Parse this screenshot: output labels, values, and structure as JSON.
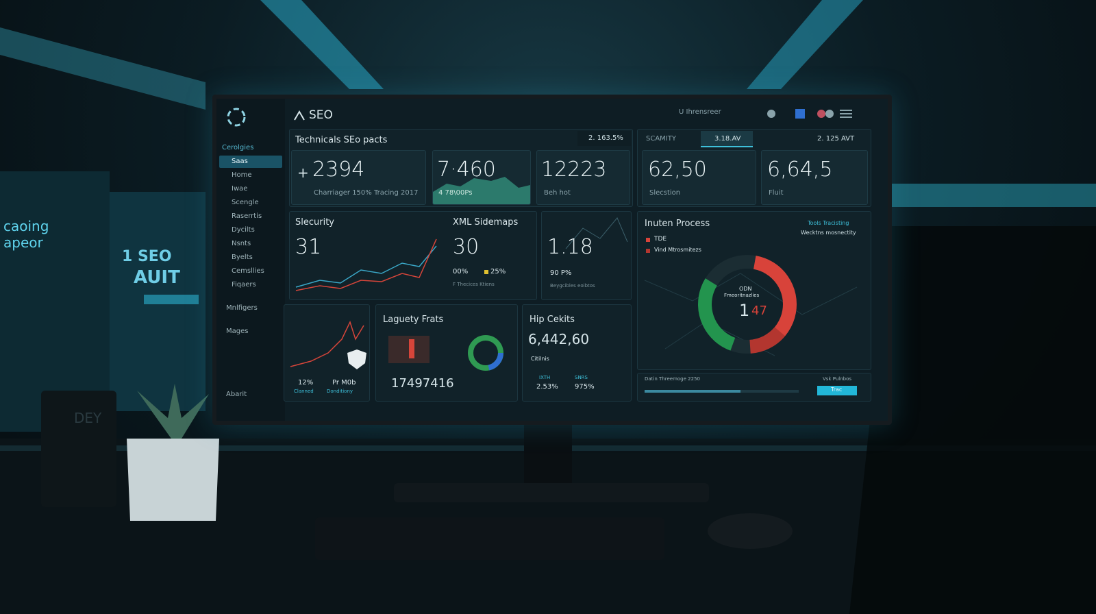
{
  "scene": {
    "left_screen": [
      "caoing",
      "apeor"
    ],
    "left_poster": [
      "1 SEO",
      "AUIT"
    ],
    "pot_text": "DEY"
  },
  "header": {
    "title": "SEO",
    "user_info": "U Ihrensreer"
  },
  "sidebar": {
    "section": "Cerolgies",
    "items": [
      "Saas",
      "Home",
      "Iwae",
      "Scengle",
      "Raserrtis",
      "Dycilts",
      "Nsnts",
      "Byelts",
      "Cemsllies",
      "Fiqaers"
    ],
    "extra": [
      "Mnlfigers",
      "Mages"
    ],
    "footer": "Abarit"
  },
  "top_panel": {
    "title": "Technicals SEo pacts",
    "badge": "2. 163.5%",
    "cards": [
      {
        "prefix": "+",
        "value": "2394",
        "caption": "Charriager 150% Tracing 2017"
      },
      {
        "value": "7·460",
        "caption": "4 78\\00Ps"
      },
      {
        "value": "12223",
        "caption": "Beh hot"
      }
    ]
  },
  "right_panel": {
    "tabs": [
      "SCAMITY",
      "3.18.AV"
    ],
    "badge": "2. 125 AVT",
    "cards": [
      {
        "value": "62,50",
        "caption": "Slecstion"
      },
      {
        "value": "6,64,5",
        "caption": "Fluit"
      }
    ]
  },
  "security": {
    "title": "Slecurity",
    "value": "31"
  },
  "xml": {
    "title": "XML Sidemaps",
    "value": "30",
    "stats": [
      "00%",
      "25%"
    ],
    "note": "F Thecices Ktiens"
  },
  "third": {
    "value": "1.18",
    "sub": "90 P%",
    "note": "Beygcibles eoibtos"
  },
  "intent": {
    "title": "Inuten Process",
    "link": "Tools Tracisting",
    "sub": "Wecktns mosnectity",
    "legend": [
      "TDE",
      "Vind Mtrosmitezs"
    ],
    "center": {
      "label": "ODN",
      "sub": "Fmeoritnazlies",
      "value": "1",
      "accent": "47"
    }
  },
  "chart_card": {
    "stats": [
      "12%",
      "Pr M0b"
    ],
    "labels": [
      "Clanned",
      "Donditiony"
    ]
  },
  "laguety": {
    "title": "Laguety Frats",
    "value": "17497416"
  },
  "hip": {
    "title": "Hip Cekits",
    "value": "6,442,60",
    "caption": "Citilnis",
    "labels": [
      "IXTH",
      "SNRS"
    ],
    "stats": [
      "2.53%",
      "975%"
    ]
  },
  "footer_bar": {
    "label": "Datin Threemoge 2250",
    "right": "Vsk Pulnbos",
    "button": "Trac"
  }
}
